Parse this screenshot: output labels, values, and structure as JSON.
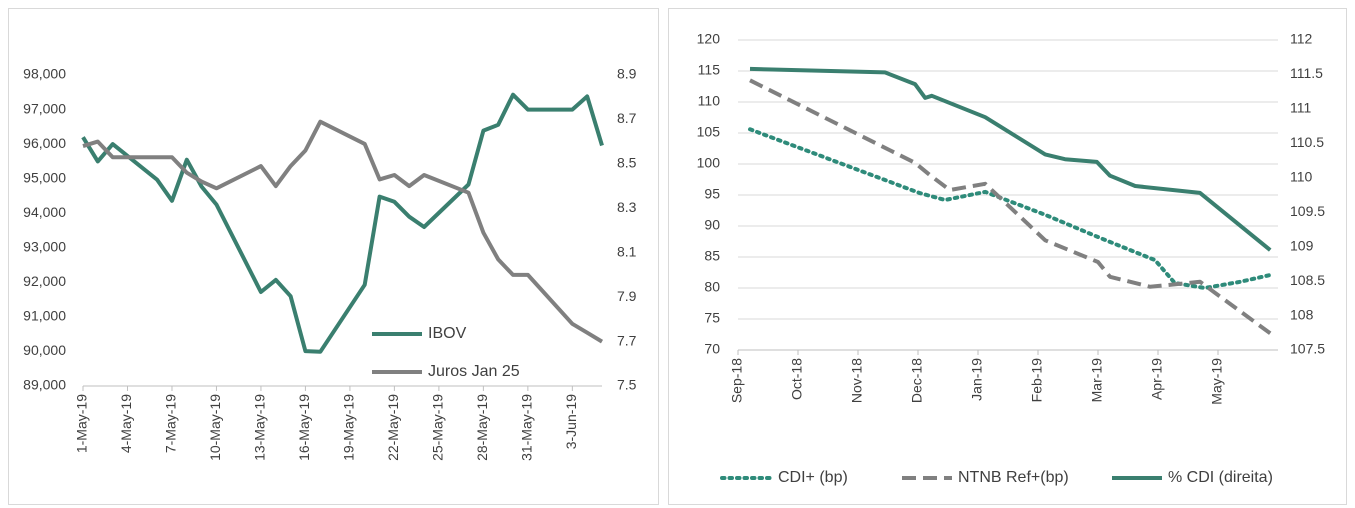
{
  "chart_data": [
    {
      "type": "line",
      "x": [
        "2019-05-01",
        "2019-05-02",
        "2019-05-03",
        "2019-05-06",
        "2019-05-07",
        "2019-05-08",
        "2019-05-09",
        "2019-05-10",
        "2019-05-13",
        "2019-05-14",
        "2019-05-15",
        "2019-05-16",
        "2019-05-17",
        "2019-05-20",
        "2019-05-21",
        "2019-05-22",
        "2019-05-23",
        "2019-05-24",
        "2019-05-27",
        "2019-05-28",
        "2019-05-29",
        "2019-05-30",
        "2019-05-31",
        "2019-06-03",
        "2019-06-04",
        "2019-06-05"
      ],
      "xlim": [
        "2019-05-01",
        "2019-06-05"
      ],
      "xticks": [
        {
          "value": "2019-05-01",
          "label": "1-May-19"
        },
        {
          "value": "2019-05-04",
          "label": "4-May-19"
        },
        {
          "value": "2019-05-07",
          "label": "7-May-19"
        },
        {
          "value": "2019-05-10",
          "label": "10-May-19"
        },
        {
          "value": "2019-05-13",
          "label": "13-May-19"
        },
        {
          "value": "2019-05-16",
          "label": "16-May-19"
        },
        {
          "value": "2019-05-19",
          "label": "19-May-19"
        },
        {
          "value": "2019-05-22",
          "label": "22-May-19"
        },
        {
          "value": "2019-05-25",
          "label": "25-May-19"
        },
        {
          "value": "2019-05-28",
          "label": "28-May-19"
        },
        {
          "value": "2019-05-31",
          "label": "31-May-19"
        },
        {
          "value": "2019-06-03",
          "label": "3-Jun-19"
        }
      ],
      "ylim": [
        89000,
        98000
      ],
      "yticks": [
        {
          "value": 89000,
          "label": "89,000"
        },
        {
          "value": 90000,
          "label": "90,000"
        },
        {
          "value": 91000,
          "label": "91,000"
        },
        {
          "value": 92000,
          "label": "92,000"
        },
        {
          "value": 93000,
          "label": "93,000"
        },
        {
          "value": 94000,
          "label": "94,000"
        },
        {
          "value": 95000,
          "label": "95,000"
        },
        {
          "value": 96000,
          "label": "96,000"
        },
        {
          "value": 97000,
          "label": "97,000"
        },
        {
          "value": 98000,
          "label": "98,000"
        }
      ],
      "y2lim": [
        7.5,
        8.9
      ],
      "y2ticks": [
        7.5,
        7.7,
        7.9,
        8.1,
        8.3,
        8.5,
        8.7,
        8.9
      ],
      "grid": false,
      "legend": "inside",
      "series": [
        {
          "name": "IBOV",
          "color": "#3a7f6f",
          "dash": "solid",
          "values": [
            96200,
            95500,
            96000,
            94970,
            94360,
            95550,
            94770,
            94250,
            91720,
            92070,
            91600,
            90010,
            89990,
            91930,
            94480,
            94330,
            93900,
            93600,
            94830,
            96390,
            96560,
            97430,
            97000,
            97000,
            97380,
            95960
          ]
        },
        {
          "name": "Juros Jan 25",
          "color": "#808080",
          "dash": "solid",
          "axis": "y2",
          "values": [
            8.58,
            8.6,
            8.53,
            8.53,
            8.53,
            8.46,
            8.42,
            8.39,
            8.49,
            8.4,
            8.49,
            8.56,
            8.69,
            8.59,
            8.43,
            8.45,
            8.4,
            8.45,
            8.37,
            8.19,
            8.07,
            8.0,
            8.0,
            7.78,
            7.74,
            7.7
          ]
        }
      ]
    },
    {
      "type": "line",
      "xlim": [
        0,
        9
      ],
      "xticks": [
        {
          "value": 0,
          "label": "Sep-18"
        },
        {
          "value": 1,
          "label": "Oct-18"
        },
        {
          "value": 2,
          "label": "Nov-18"
        },
        {
          "value": 3,
          "label": "Dec-18"
        },
        {
          "value": 4,
          "label": "Jan-19"
        },
        {
          "value": 5,
          "label": "Feb-19"
        },
        {
          "value": 6,
          "label": "Mar-19"
        },
        {
          "value": 7,
          "label": "Apr-19"
        },
        {
          "value": 8,
          "label": "May-19"
        }
      ],
      "ylim": [
        70,
        120
      ],
      "yticks": [
        70,
        75,
        80,
        85,
        90,
        95,
        100,
        105,
        110,
        115,
        120
      ],
      "y2lim": [
        107.5,
        112
      ],
      "y2ticks": [
        107.5,
        108,
        108.5,
        109,
        109.5,
        110,
        110.5,
        111,
        111.5,
        112
      ],
      "grid": true,
      "legend": "bottom",
      "series": [
        {
          "name": "CDI+ (bp)",
          "color": "#2e8b7a",
          "dash": "dotted",
          "x": [
            0.2,
            3.03,
            3.45,
            4.12,
            5.12,
            6.03,
            6.95,
            7.28,
            7.78,
            8.37,
            8.87
          ],
          "values": [
            105.6,
            95.3,
            94.2,
            95.5,
            91.8,
            88.1,
            84.5,
            80.8,
            80.0,
            81.0,
            82.1
          ]
        },
        {
          "name": "NTNB Ref+(bp)",
          "color": "#808080",
          "dash": "dashed",
          "x": [
            0.2,
            2.95,
            3.2,
            3.53,
            4.12,
            5.12,
            6.0,
            6.2,
            6.87,
            7.7,
            8.87
          ],
          "values": [
            113.5,
            100.2,
            98.2,
            95.8,
            96.8,
            87.7,
            84.2,
            81.8,
            80.2,
            81.0,
            72.7
          ]
        },
        {
          "name": "% CDI (direita)",
          "color": "#3a7f6f",
          "dash": "solid",
          "axis": "y2",
          "x": [
            0.2,
            2.45,
            2.95,
            3.12,
            3.23,
            4.12,
            5.12,
            5.45,
            5.98,
            6.2,
            6.62,
            7.7,
            8.87
          ],
          "values": [
            111.58,
            111.53,
            111.36,
            111.16,
            111.19,
            110.88,
            110.34,
            110.27,
            110.23,
            110.03,
            109.88,
            109.78,
            108.95
          ]
        }
      ]
    }
  ]
}
